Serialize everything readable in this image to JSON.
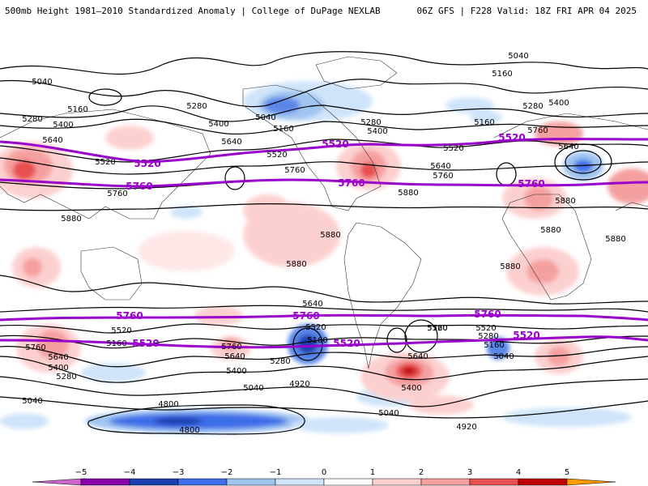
{
  "header": {
    "title": "500mb Height 1981–2010 Standardized Anomaly | College of DuPage NEXLAB",
    "run_info": "06Z GFS | F228 Valid: 18Z FRI APR 04 2025"
  },
  "map": {
    "projection": "global equirectangular",
    "contour_color": "#000000",
    "highlight_color": "#9900cc",
    "labels": {
      "l5040a": "5040",
      "l5160a": "5160",
      "l5280a": "5280",
      "l5400a": "5400",
      "l5520a": "5520",
      "l5640a": "5640",
      "l5760a": "5760",
      "l5880a": "5880",
      "l5280b": "5280",
      "l5400b": "5400",
      "l5520b": "5520",
      "l5160b": "5160",
      "l5040b": "5040",
      "l5400c": "5400",
      "l5280c": "5280",
      "l5160c": "5160",
      "l5040c": "5040",
      "l5520c": "5520",
      "l5640b": "5640",
      "l5760b": "5760",
      "l5520d": "5520",
      "l5640c": "5640",
      "l5400d": "5400",
      "l5280d": "5280",
      "l5160d": "5160",
      "l5760c": "5760",
      "l5880b": "5880",
      "l5880c": "5880",
      "l5880d": "5880",
      "l5880e": "5880",
      "l5880f": "5880",
      "l5880g": "5880",
      "l5880h": "5880",
      "l5640d": "5640",
      "l5760d": "5760",
      "s5760a": "5760",
      "s5520a": "5520",
      "s5640a": "5640",
      "s5400a": "5400",
      "s5280a": "5280",
      "s5040a": "5040",
      "s5160a": "5160",
      "s5760b": "5760",
      "s5640b": "5640",
      "s5400b": "5400",
      "s5280b": "5280",
      "s5040b": "5040",
      "s4920a": "4920",
      "s4800a": "4800",
      "s4800b": "4800",
      "s5520b": "5520",
      "s5160b": "5160",
      "s5760c": "5760",
      "s5640c": "5640",
      "s5400c": "5400",
      "s5040c": "5040",
      "s4920b": "4920",
      "s5520c": "5520",
      "s5280c": "5280",
      "s5160c": "5160",
      "s5040d": "5040"
    },
    "purple_labels": {
      "p5520a": "5520",
      "p5760a": "5760",
      "p5520b": "5520",
      "p5760b": "5760",
      "p5520c": "5520",
      "p5760c": "5760",
      "ps5760a": "5760",
      "ps5520a": "5520",
      "ps5760b": "5760",
      "ps5520b": "5520",
      "ps5760c": "5760",
      "ps5520c": "5520"
    }
  },
  "colorbar": {
    "ticks": [
      "−5",
      "−4",
      "−3",
      "−2",
      "−1",
      "0",
      "1",
      "2",
      "3",
      "4",
      "5"
    ],
    "colors": [
      "#cc66cc",
      "#8800aa",
      "#1a3fb0",
      "#3c6ee8",
      "#9fc4f0",
      "#cfe4fa",
      "#ffffff",
      "#fdd0d0",
      "#f5a0a0",
      "#e85050",
      "#c00000",
      "#ff9900"
    ]
  }
}
